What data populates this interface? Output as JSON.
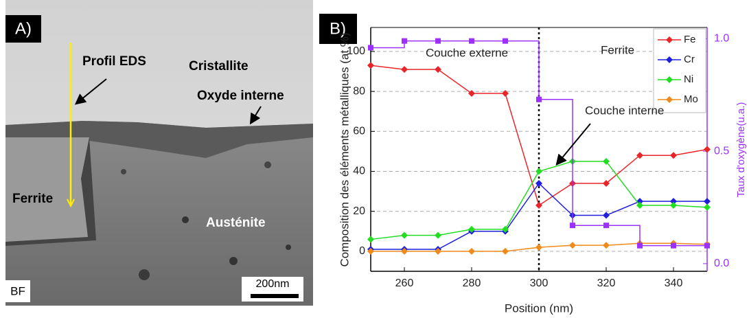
{
  "figure_a": {
    "panel_label": "A)",
    "labels": [
      "Profil EDS",
      "Cristallite",
      "Oxyde interne",
      "Ferrite",
      "Austénite"
    ],
    "mode": "BF",
    "scale_bar": "200nm"
  },
  "chart_data": {
    "type": "line",
    "panel_label": "B)",
    "x_label": "Position (nm)",
    "y_label": "Composition des éléments métalliques (at %)",
    "y2_label": "Taux d'oxygène(u.a.)",
    "x": [
      250,
      260,
      270,
      280,
      290,
      300,
      310,
      320,
      330,
      340,
      350
    ],
    "series": [
      {
        "name": "Fe",
        "color": "#e8262a",
        "marker": "diamond",
        "values": [
          93,
          91,
          91,
          79,
          79,
          23,
          34,
          34,
          48,
          48,
          51
        ]
      },
      {
        "name": "Cr",
        "color": "#1f1fdc",
        "marker": "diamond",
        "values": [
          1,
          1,
          1,
          10,
          10,
          34,
          18,
          18,
          25,
          25,
          25
        ]
      },
      {
        "name": "Ni",
        "color": "#22dd22",
        "marker": "diamond",
        "values": [
          6,
          8,
          8,
          11,
          11,
          40,
          45,
          45,
          23,
          23,
          22
        ]
      },
      {
        "name": "Mo",
        "color": "#f08a1a",
        "marker": "diamond",
        "values": [
          0,
          0,
          0,
          0,
          0,
          2,
          3,
          3,
          4,
          4,
          3.5
        ]
      },
      {
        "color": "#9b30ff",
        "marker": "square",
        "axis": "y2",
        "values": [
          0.96,
          0.99,
          0.99,
          0.99,
          0.99,
          0.73,
          0.17,
          0.17,
          0.08,
          0.08,
          0.08
        ]
      }
    ],
    "xlim": [
      250,
      350
    ],
    "xticks": [
      260,
      280,
      300,
      320,
      340
    ],
    "ylim": [
      -10,
      112
    ],
    "yticks": [
      0,
      20,
      40,
      60,
      80,
      100
    ],
    "y2lim": [
      -0.034,
      1.05
    ],
    "y2ticks": [
      {
        "value": 0,
        "label": "0.0"
      },
      0.5,
      {
        "value": 1,
        "label": "1.0"
      }
    ],
    "grid": true,
    "vline": 300,
    "legend": "upper right",
    "annotations": [
      "Couche externe",
      "Ferrite",
      "Couche interne"
    ]
  }
}
